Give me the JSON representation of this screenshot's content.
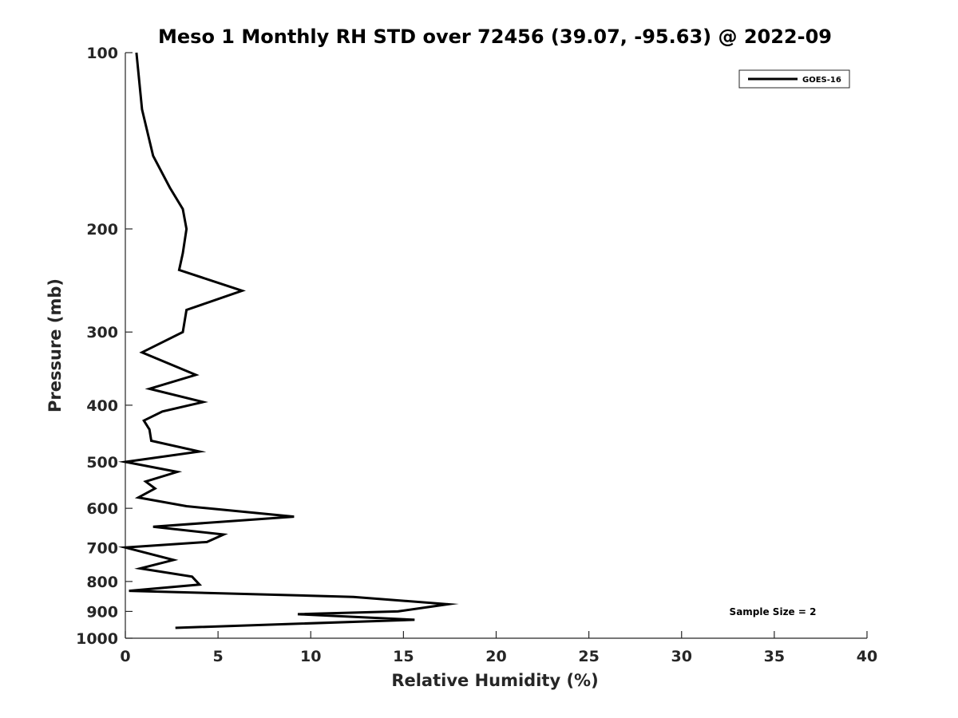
{
  "chart_data": {
    "type": "line",
    "title": "Meso 1 Monthly RH STD over 72456 (39.07, -95.63) @ 2022-09",
    "xlabel": "Relative Humidity (%)",
    "ylabel": "Pressure (mb)",
    "xlim": [
      0,
      40
    ],
    "ylim": [
      100,
      1000
    ],
    "y_scale": "log",
    "y_reversed": true,
    "x_ticks": [
      "0",
      "5",
      "10",
      "15",
      "20",
      "25",
      "30",
      "35",
      "40"
    ],
    "y_ticks": [
      "100",
      "200",
      "300",
      "400",
      "500",
      "600",
      "700",
      "800",
      "900",
      "1000"
    ],
    "grid": false,
    "legend_position": "top-right",
    "annotation": "Sample Size = 2",
    "series": [
      {
        "name": "GOES-16",
        "color": "#000000",
        "x": [
          0.6,
          0.9,
          1.5,
          2.4,
          3.1,
          3.3,
          3.1,
          2.9,
          6.3,
          3.3,
          3.1,
          0.9,
          3.8,
          1.3,
          4.2,
          2.0,
          1.0,
          1.3,
          1.4,
          4.0,
          0.0,
          2.8,
          1.1,
          1.6,
          0.7,
          3.3,
          9.1,
          1.5,
          5.3,
          4.4,
          0.0,
          2.6,
          0.8,
          3.6,
          4.0,
          0.2,
          12.3,
          17.4,
          14.7,
          9.3,
          15.6,
          2.7
        ],
        "y": [
          100,
          125,
          150,
          170,
          185,
          200,
          220,
          235,
          255,
          275,
          300,
          325,
          355,
          375,
          395,
          410,
          425,
          440,
          460,
          480,
          500,
          520,
          540,
          555,
          575,
          595,
          620,
          645,
          665,
          685,
          700,
          735,
          760,
          785,
          810,
          830,
          850,
          875,
          900,
          910,
          930,
          960
        ]
      }
    ]
  }
}
